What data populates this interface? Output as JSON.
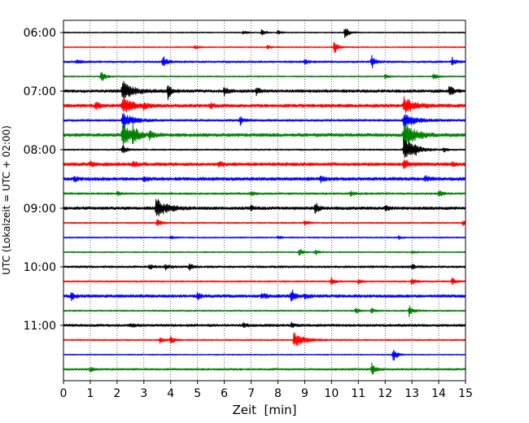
{
  "chart_data": {
    "type": "line",
    "title": "",
    "xlabel": "Zeit  [min]",
    "ylabel": "UTC (Lokalzeit = UTC + 02:00)",
    "xlim": [
      0,
      15
    ],
    "x_ticks": [
      "0",
      "1",
      "2",
      "3",
      "4",
      "5",
      "6",
      "7",
      "8",
      "9",
      "10",
      "11",
      "12",
      "13",
      "14",
      "15"
    ],
    "y_tick_labels": [
      "06:00",
      "07:00",
      "08:00",
      "09:00",
      "10:00",
      "11:00"
    ],
    "grid": "vertical-dotted",
    "trace_colors": [
      "#000000",
      "#ff0000",
      "#0000ff",
      "#008000"
    ],
    "traces": [
      {
        "time": "06:00",
        "color": "#000000",
        "noise": 0.7,
        "events": [
          {
            "t": 6.7,
            "a": 2.0
          },
          {
            "t": 7.4,
            "a": 3.5
          },
          {
            "t": 8.0,
            "a": 2.5
          },
          {
            "t": 10.5,
            "a": 9.0
          }
        ]
      },
      {
        "time": "06:15",
        "color": "#ff0000",
        "noise": 0.7,
        "events": [
          {
            "t": 4.9,
            "a": 2.5
          },
          {
            "t": 7.6,
            "a": 2.5
          },
          {
            "t": 10.1,
            "a": 9.0
          }
        ]
      },
      {
        "time": "06:30",
        "color": "#0000ff",
        "noise": 1.2,
        "events": [
          {
            "t": 0.5,
            "a": 3.0
          },
          {
            "t": 3.7,
            "a": 8.0
          },
          {
            "t": 9.0,
            "a": 3.0
          },
          {
            "t": 11.5,
            "a": 8.0
          },
          {
            "t": 14.5,
            "a": 5.0
          }
        ]
      },
      {
        "time": "06:45",
        "color": "#008000",
        "noise": 0.8,
        "events": [
          {
            "t": 1.4,
            "a": 8.0
          },
          {
            "t": 12.0,
            "a": 3.0
          },
          {
            "t": 13.8,
            "a": 4.0
          }
        ]
      },
      {
        "time": "07:00",
        "color": "#000000",
        "noise": 1.8,
        "events": [
          {
            "t": 2.2,
            "a": 12.0
          },
          {
            "t": 3.9,
            "a": 9.0
          },
          {
            "t": 6.0,
            "a": 5.0
          },
          {
            "t": 7.2,
            "a": 4.0
          },
          {
            "t": 14.4,
            "a": 7.0
          }
        ]
      },
      {
        "time": "07:15",
        "color": "#ff0000",
        "noise": 2.0,
        "events": [
          {
            "t": 1.2,
            "a": 5.0
          },
          {
            "t": 2.2,
            "a": 10.0
          },
          {
            "t": 3.0,
            "a": 3.0
          },
          {
            "t": 5.5,
            "a": 3.0
          },
          {
            "t": 12.7,
            "a": 10.0
          }
        ]
      },
      {
        "time": "07:30",
        "color": "#0000ff",
        "noise": 1.3,
        "events": [
          {
            "t": 2.2,
            "a": 10.0
          },
          {
            "t": 6.6,
            "a": 5.0
          },
          {
            "t": 12.7,
            "a": 10.0
          }
        ]
      },
      {
        "time": "07:45",
        "color": "#008000",
        "noise": 2.0,
        "events": [
          {
            "t": 2.2,
            "a": 14.0
          },
          {
            "t": 2.6,
            "a": 9.0
          },
          {
            "t": 3.2,
            "a": 5.0
          },
          {
            "t": 12.7,
            "a": 18.0
          }
        ]
      },
      {
        "time": "08:00",
        "color": "#000000",
        "noise": 0.9,
        "events": [
          {
            "t": 2.2,
            "a": 6.0
          },
          {
            "t": 12.7,
            "a": 14.0
          },
          {
            "t": 13.1,
            "a": 4.0
          },
          {
            "t": 14.2,
            "a": 2.5
          }
        ]
      },
      {
        "time": "08:15",
        "color": "#ff0000",
        "noise": 2.0,
        "events": [
          {
            "t": 1.0,
            "a": 3.0
          },
          {
            "t": 2.6,
            "a": 3.0
          },
          {
            "t": 5.8,
            "a": 3.0
          },
          {
            "t": 12.7,
            "a": 8.0
          },
          {
            "t": 14.5,
            "a": 3.0
          }
        ]
      },
      {
        "time": "08:30",
        "color": "#0000ff",
        "noise": 2.0,
        "events": [
          {
            "t": 0.4,
            "a": 3.0
          },
          {
            "t": 3.0,
            "a": 2.5
          },
          {
            "t": 9.6,
            "a": 3.0
          },
          {
            "t": 13.5,
            "a": 3.0
          }
        ]
      },
      {
        "time": "08:45",
        "color": "#008000",
        "noise": 1.2,
        "events": [
          {
            "t": 2.0,
            "a": 2.5
          },
          {
            "t": 7.0,
            "a": 2.5
          },
          {
            "t": 10.7,
            "a": 3.0
          },
          {
            "t": 14.0,
            "a": 4.0
          }
        ]
      },
      {
        "time": "09:00",
        "color": "#000000",
        "noise": 1.8,
        "events": [
          {
            "t": 3.45,
            "a": 12.0
          },
          {
            "t": 7.0,
            "a": 3.0
          },
          {
            "t": 9.4,
            "a": 7.0
          },
          {
            "t": 12.0,
            "a": 3.0
          }
        ]
      },
      {
        "time": "09:15",
        "color": "#ff0000",
        "noise": 0.9,
        "events": [
          {
            "t": 3.5,
            "a": 5.0
          },
          {
            "t": 9.0,
            "a": 3.0
          },
          {
            "t": 14.9,
            "a": 3.0
          }
        ]
      },
      {
        "time": "09:30",
        "color": "#0000ff",
        "noise": 0.8,
        "events": [
          {
            "t": 4.0,
            "a": 2.0
          },
          {
            "t": 8.0,
            "a": 2.0
          },
          {
            "t": 12.5,
            "a": 2.0
          }
        ]
      },
      {
        "time": "09:45",
        "color": "#008000",
        "noise": 0.8,
        "events": [
          {
            "t": 8.8,
            "a": 4.0
          },
          {
            "t": 9.4,
            "a": 3.0
          },
          {
            "t": 13.0,
            "a": 2.0
          }
        ]
      },
      {
        "time": "10:00",
        "color": "#000000",
        "noise": 1.3,
        "events": [
          {
            "t": 3.2,
            "a": 3.0
          },
          {
            "t": 3.8,
            "a": 4.0
          },
          {
            "t": 4.7,
            "a": 4.0
          },
          {
            "t": 13.0,
            "a": 3.0
          }
        ]
      },
      {
        "time": "10:15",
        "color": "#ff0000",
        "noise": 0.9,
        "events": [
          {
            "t": 10.0,
            "a": 5.0
          },
          {
            "t": 11.0,
            "a": 3.0
          },
          {
            "t": 13.0,
            "a": 4.0
          },
          {
            "t": 14.5,
            "a": 5.0
          }
        ]
      },
      {
        "time": "10:30",
        "color": "#0000ff",
        "noise": 1.8,
        "events": [
          {
            "t": 0.3,
            "a": 5.0
          },
          {
            "t": 5.0,
            "a": 4.0
          },
          {
            "t": 7.4,
            "a": 4.0
          },
          {
            "t": 8.5,
            "a": 9.0
          },
          {
            "t": 9.0,
            "a": 4.0
          }
        ]
      },
      {
        "time": "10:45",
        "color": "#008000",
        "noise": 0.9,
        "events": [
          {
            "t": 10.9,
            "a": 3.0
          },
          {
            "t": 11.5,
            "a": 3.0
          },
          {
            "t": 12.9,
            "a": 7.0
          }
        ]
      },
      {
        "time": "11:00",
        "color": "#000000",
        "noise": 1.5,
        "events": [
          {
            "t": 2.5,
            "a": 2.5
          },
          {
            "t": 6.7,
            "a": 3.0
          },
          {
            "t": 8.5,
            "a": 3.0
          }
        ]
      },
      {
        "time": "11:15",
        "color": "#ff0000",
        "noise": 0.9,
        "events": [
          {
            "t": 3.6,
            "a": 4.0
          },
          {
            "t": 4.0,
            "a": 5.0
          },
          {
            "t": 8.6,
            "a": 10.0
          }
        ]
      },
      {
        "time": "11:30",
        "color": "#0000ff",
        "noise": 0.7,
        "events": [
          {
            "t": 12.3,
            "a": 9.0
          }
        ]
      },
      {
        "time": "11:45",
        "color": "#008000",
        "noise": 1.2,
        "events": [
          {
            "t": 1.0,
            "a": 2.5
          },
          {
            "t": 11.5,
            "a": 8.0
          }
        ]
      }
    ]
  }
}
